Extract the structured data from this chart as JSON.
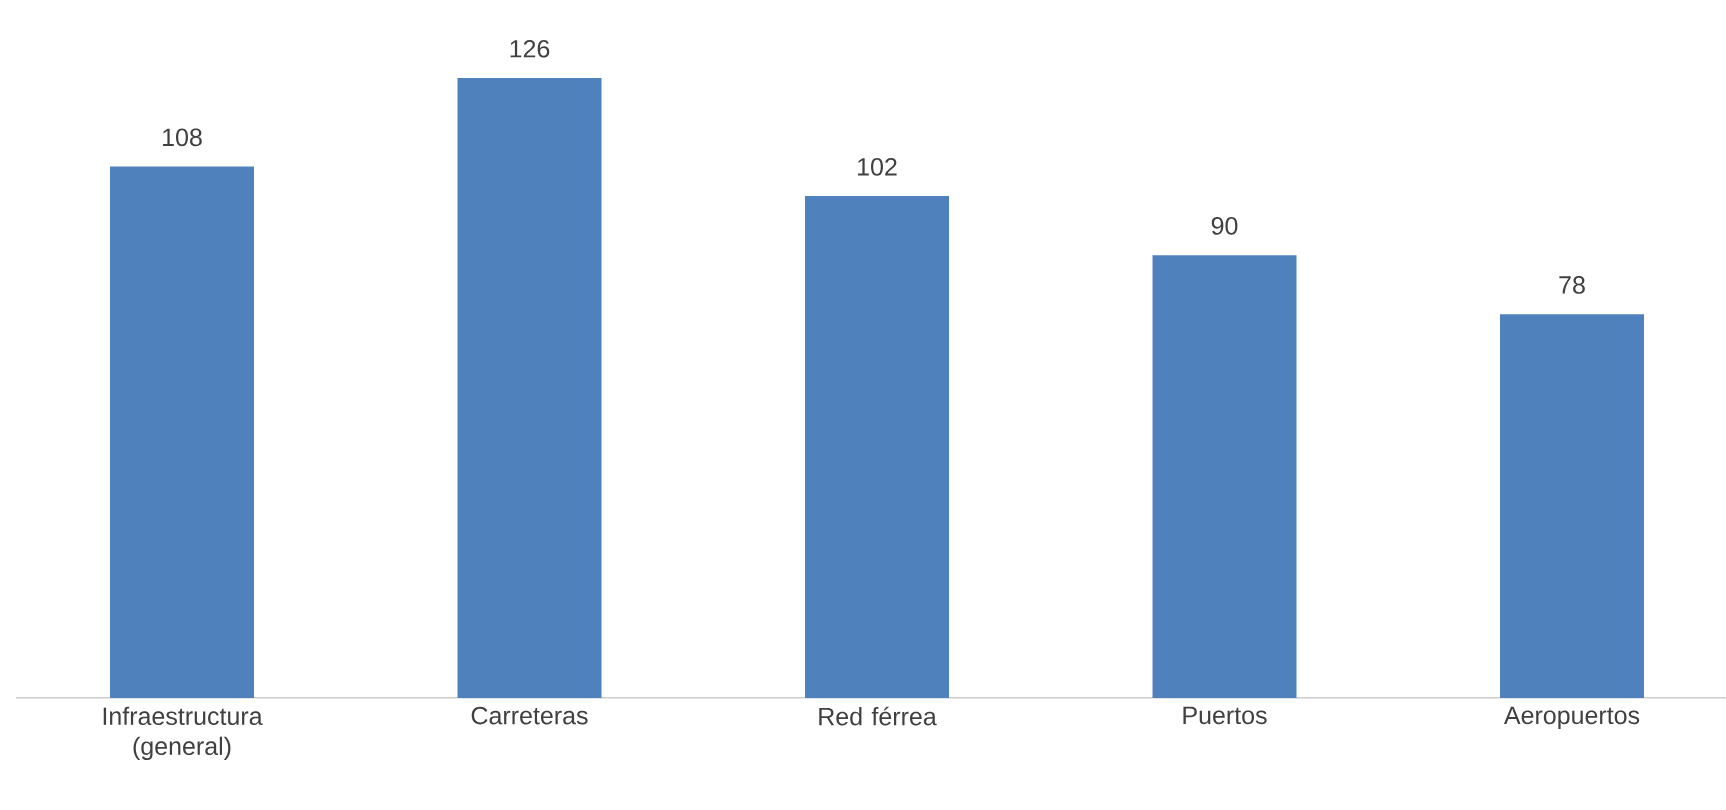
{
  "chart_data": {
    "type": "bar",
    "categories": [
      "Infraestructura (general)",
      "Carreteras",
      "Red férrea",
      "Puertos",
      "Aeropuertos"
    ],
    "values": [
      108,
      126,
      102,
      90,
      78
    ],
    "color": "#4f81bd",
    "data_labels": true,
    "tick_labels": "x"
  }
}
